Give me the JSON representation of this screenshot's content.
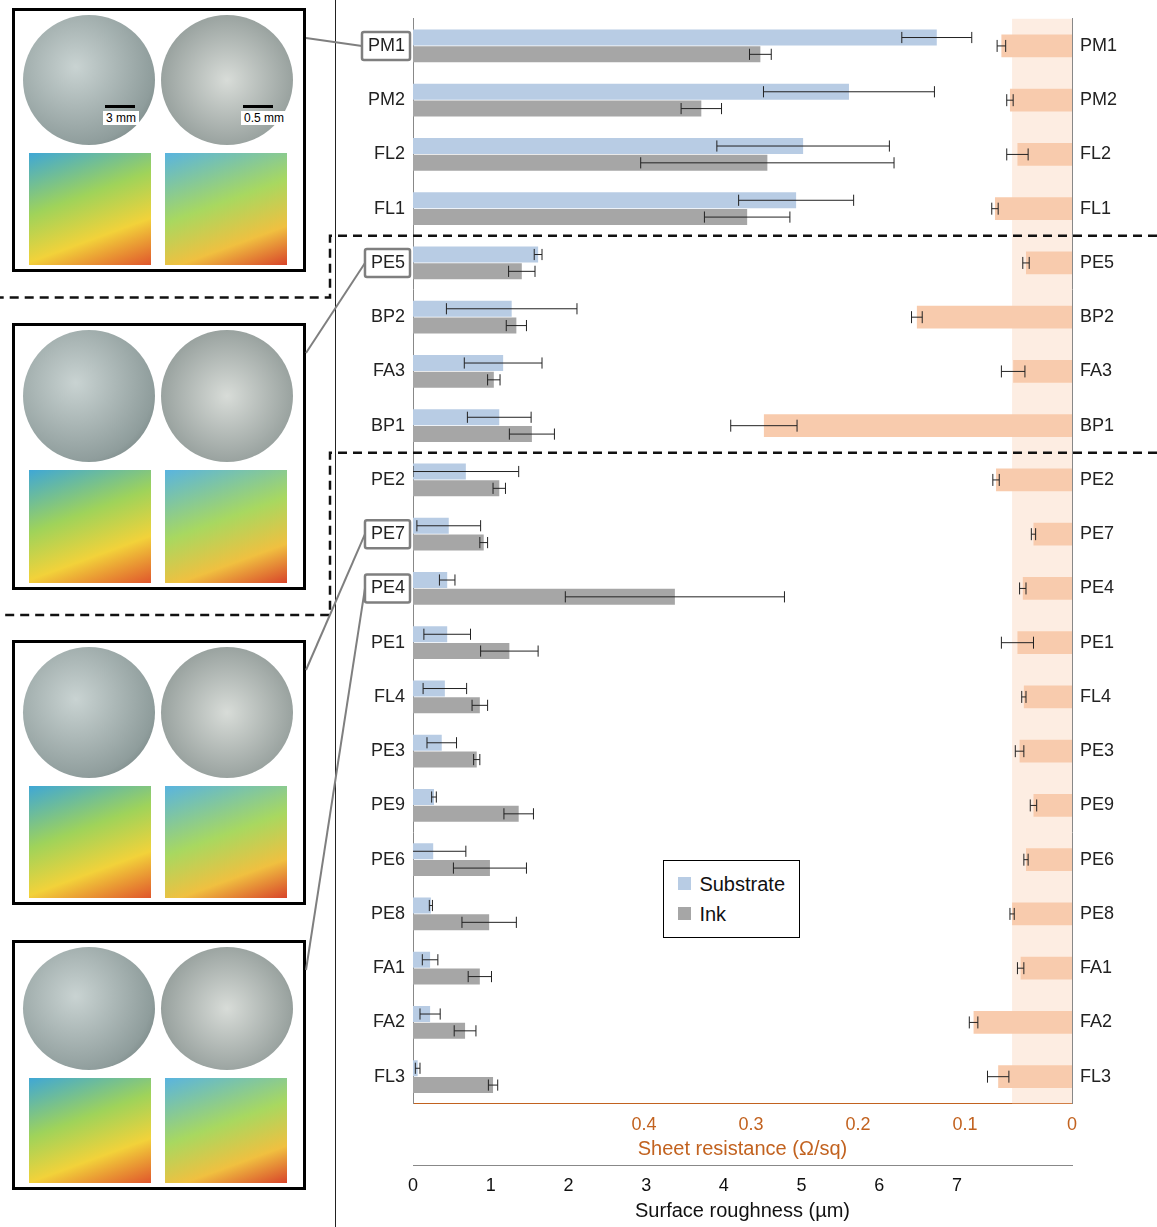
{
  "chart_data": {
    "type": "bar",
    "orientation": "horizontal",
    "categories": [
      "PM1",
      "PM2",
      "FL2",
      "FL1",
      "PE5",
      "BP2",
      "FA3",
      "BP1",
      "PE2",
      "PE7",
      "PE4",
      "PE1",
      "FL4",
      "PE3",
      "PE9",
      "PE6",
      "PE8",
      "FA1",
      "FA2",
      "FL3"
    ],
    "series": [
      {
        "name": "Substrate",
        "color": "#b8cce4",
        "values": [
          6.74,
          5.61,
          5.02,
          4.93,
          1.61,
          1.27,
          1.16,
          1.11,
          0.68,
          0.46,
          0.44,
          0.44,
          0.41,
          0.37,
          0.27,
          0.26,
          0.23,
          0.22,
          0.22,
          0.06
        ],
        "errors": [
          0.45,
          1.1,
          1.11,
          0.74,
          0.05,
          0.84,
          0.5,
          0.41,
          0.68,
          0.41,
          0.1,
          0.3,
          0.28,
          0.19,
          0.03,
          0.42,
          0.02,
          0.1,
          0.13,
          0.03
        ]
      },
      {
        "name": "Ink",
        "color": "#a6a6a6",
        "values": [
          4.47,
          3.71,
          4.56,
          4.3,
          1.4,
          1.33,
          1.04,
          1.53,
          1.11,
          0.91,
          3.37,
          1.24,
          0.86,
          0.82,
          1.36,
          0.99,
          0.98,
          0.86,
          0.67,
          1.03
        ],
        "errors": [
          0.14,
          0.26,
          1.63,
          0.55,
          0.17,
          0.13,
          0.08,
          0.29,
          0.08,
          0.05,
          1.41,
          0.37,
          0.1,
          0.04,
          0.19,
          0.47,
          0.35,
          0.15,
          0.14,
          0.06
        ]
      },
      {
        "axis": "x2",
        "color": "#f8cbad",
        "values": [
          0.066,
          0.058,
          0.051,
          0.072,
          0.043,
          0.145,
          0.055,
          0.288,
          0.071,
          0.036,
          0.046,
          0.051,
          0.045,
          0.049,
          0.036,
          0.043,
          0.056,
          0.048,
          0.092,
          0.069
        ],
        "errors": [
          0.004,
          0.003,
          0.01,
          0.003,
          0.003,
          0.005,
          0.011,
          0.031,
          0.003,
          0.002,
          0.003,
          0.015,
          0.002,
          0.004,
          0.003,
          0.002,
          0.002,
          0.003,
          0.004,
          0.01
        ]
      }
    ],
    "xlabel": "Surface roughness (µm)",
    "xlim": [
      0,
      8.48
    ],
    "xticks": [
      0,
      1,
      2,
      3,
      4,
      5,
      6,
      7
    ],
    "x2label": "Sheet resistance (Ω/sq)",
    "x2lim": [
      0.616,
      0
    ],
    "x2ticks": [
      0,
      0.1,
      0.2,
      0.3,
      0.4
    ],
    "x2_band": [
      0,
      0.056
    ],
    "grid": false,
    "legend": "center",
    "separators_after": [
      "FL1",
      "BP1"
    ],
    "panels": [
      {
        "category": "PM1",
        "scale_bars": [
          "3 mm",
          "0.5 mm"
        ]
      },
      {
        "category": "PE5"
      },
      {
        "category": "PE7"
      },
      {
        "category": "PE4"
      }
    ]
  }
}
